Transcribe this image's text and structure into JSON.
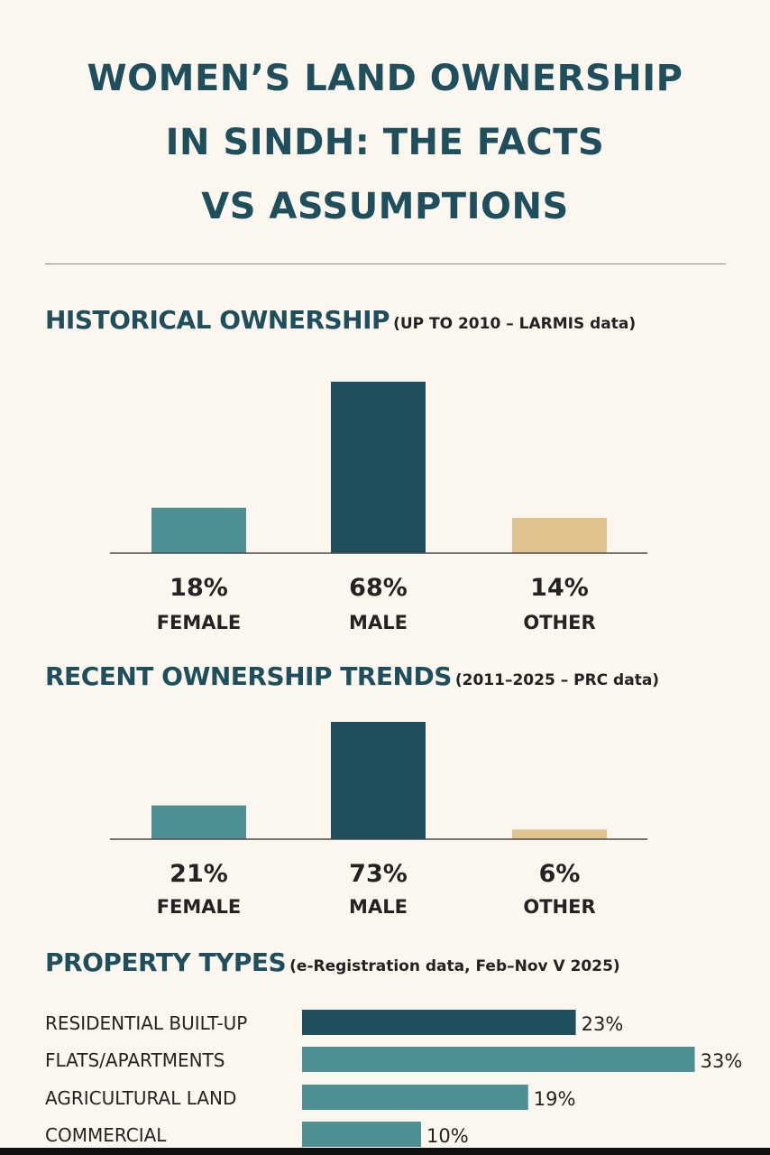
{
  "title": {
    "line1": "WOMEN’S LAND OWNERSHIP",
    "line2": "IN SINDH: THE FACTS",
    "line3": "VS ASSUMPTIONS"
  },
  "colors": {
    "female": "#4e8f93",
    "male": "#1f4f5c",
    "other": "#dfc28d",
    "residential": "#1f4f5c",
    "teal": "#4e8f93",
    "heading": "#1f4f5c",
    "background": "#fbf7ee"
  },
  "sections": {
    "historical": {
      "title": "HISTORICAL OWNERSHIP",
      "subtitle": "(UP TO 2010 – LARMIS data)"
    },
    "recent": {
      "title": "RECENT OWNERSHIP TRENDS",
      "subtitle": "(2011–2025 – PRC data)"
    },
    "property": {
      "title": "PROPERTY TYPES",
      "subtitle": "(e-Registration data, Feb–Nov V 2025)"
    }
  },
  "chart_data": [
    {
      "type": "bar",
      "title": "HISTORICAL OWNERSHIP",
      "subtitle": "(UP TO 2010 – LARMIS data)",
      "categories": [
        "FEMALE",
        "MALE",
        "OTHER"
      ],
      "values": [
        18,
        68,
        14
      ],
      "value_labels": [
        "18%",
        "68%",
        "14%"
      ],
      "colors": [
        "#4e8f93",
        "#1f4f5c",
        "#dfc28d"
      ],
      "grid": false,
      "legend": "none"
    },
    {
      "type": "bar",
      "title": "RECENT OWNERSHIP TRENDS",
      "subtitle": "(2011–2025 – PRC data)",
      "categories": [
        "FEMALE",
        "MALE",
        "OTHER"
      ],
      "values": [
        21,
        73,
        6
      ],
      "value_labels": [
        "21%",
        "73%",
        "6%"
      ],
      "colors": [
        "#4e8f93",
        "#1f4f5c",
        "#dfc28d"
      ],
      "grid": false,
      "legend": "none"
    },
    {
      "type": "bar",
      "orientation": "horizontal",
      "title": "PROPERTY TYPES",
      "subtitle": "(e-Registration data, Feb–Nov V 2025)",
      "categories": [
        "RESIDENTIAL BUILT-UP",
        "FLATS/APARTMENTS",
        "AGRICULTURAL LAND",
        "COMMERCIAL"
      ],
      "values": [
        23,
        33,
        19,
        10
      ],
      "value_labels": [
        "23%",
        "33%",
        "19%",
        "10%"
      ],
      "colors": [
        "#1f4f5c",
        "#4e8f93",
        "#4e8f93",
        "#4e8f93"
      ],
      "grid": false,
      "legend": "none"
    }
  ]
}
